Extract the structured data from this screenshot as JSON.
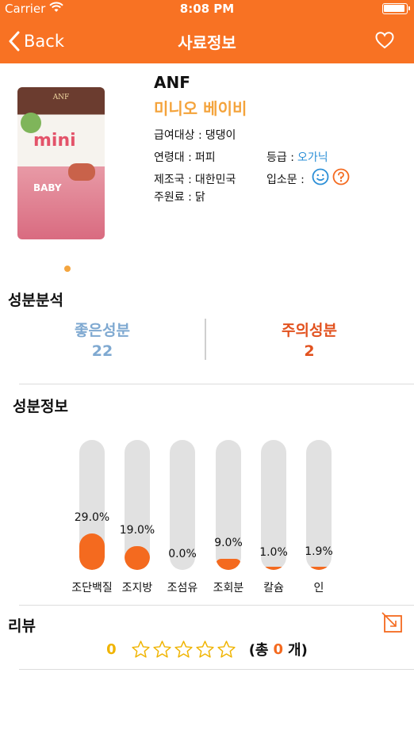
{
  "status": {
    "carrier": "Carrier",
    "time": "8:08 PM"
  },
  "nav": {
    "back_label": "Back",
    "title": "사료정보"
  },
  "product": {
    "brand": "ANF",
    "name": "미니오 베이비",
    "package_text": {
      "brand": "ANF",
      "line": "mini",
      "variant": "BABY"
    },
    "target_label": "급여대상 :",
    "target_value": "댕댕이",
    "age_label": "연령대 :",
    "age_value": "퍼피",
    "grade_label": "등급 :",
    "grade_value": "오가닉",
    "country_label": "제조국 :",
    "country_value": "대한민국",
    "word_label": "입소문 :",
    "main_label": "주원료 :",
    "main_value": "닭"
  },
  "analysis": {
    "title": "성분분석",
    "good_label": "좋은성분",
    "good_count": "22",
    "bad_label": "주의성분",
    "bad_count": "2"
  },
  "nutrients": {
    "title": "성분정보",
    "items": [
      {
        "name": "조단백질",
        "percent": 29.0,
        "label": "29.0%"
      },
      {
        "name": "조지방",
        "percent": 19.0,
        "label": "19.0%"
      },
      {
        "name": "조섬유",
        "percent": 0.0,
        "label": "0.0%"
      },
      {
        "name": "조회분",
        "percent": 9.0,
        "label": "9.0%"
      },
      {
        "name": "칼슘",
        "percent": 1.0,
        "label": "1.0%"
      },
      {
        "name": "인",
        "percent": 1.9,
        "label": "1.9%"
      }
    ]
  },
  "review": {
    "title": "리뷰",
    "score": "0",
    "stars_filled": 0,
    "stars_total": 5,
    "count_prefix": "(총",
    "count": "0",
    "count_suffix": "개)"
  },
  "colors": {
    "accent": "#f87223",
    "good": "#7fa9d1",
    "bad": "#e2521f",
    "star": "#f0b400"
  }
}
